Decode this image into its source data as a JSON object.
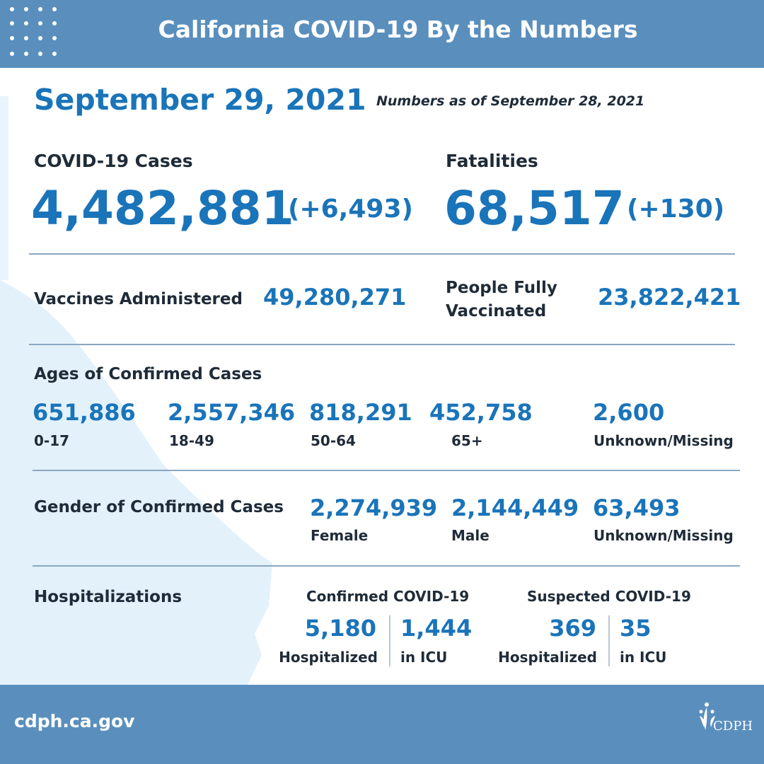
{
  "header": {
    "title": "California COVID-19 By the Numbers"
  },
  "date": "September 29, 2021",
  "as_of": "Numbers as of September 28, 2021",
  "cases": {
    "label": "COVID-19 Cases",
    "total": "4,482,881",
    "change": "(+6,493)"
  },
  "fatalities": {
    "label": "Fatalities",
    "total": "68,517",
    "change": "(+130)"
  },
  "vaccines": {
    "administered_label": "Vaccines Administered",
    "administered_value": "49,280,271",
    "fully_label_line1": "People Fully",
    "fully_label_line2": "Vaccinated",
    "fully_value": "23,822,421"
  },
  "ages": {
    "label": "Ages of Confirmed Cases",
    "groups": [
      {
        "value": "651,886",
        "label": "0-17"
      },
      {
        "value": "2,557,346",
        "label": "18-49"
      },
      {
        "value": "818,291",
        "label": "50-64"
      },
      {
        "value": "452,758",
        "label": "65+"
      },
      {
        "value": "2,600",
        "label": "Unknown/Missing"
      }
    ]
  },
  "gender": {
    "label": "Gender of Confirmed Cases",
    "groups": [
      {
        "value": "2,274,939",
        "label": "Female"
      },
      {
        "value": "2,144,449",
        "label": "Male"
      },
      {
        "value": "63,493",
        "label": "Unknown/Missing"
      }
    ]
  },
  "hospitalizations": {
    "label": "Hospitalizations",
    "confirmed": {
      "label": "Confirmed COVID-19",
      "hospitalized_value": "5,180",
      "hospitalized_label": "Hospitalized",
      "icu_value": "1,444",
      "icu_label": "in ICU"
    },
    "suspected": {
      "label": "Suspected COVID-19",
      "hospitalized_value": "369",
      "hospitalized_label": "Hospitalized",
      "icu_value": "35",
      "icu_label": "in ICU"
    }
  },
  "footer": {
    "url": "cdph.ca.gov",
    "logo_text": "CDPH"
  },
  "colors": {
    "header_bg": "#5a8fbd",
    "accent": "#1a74b9",
    "map": "#e3f1fb",
    "text": "#1f2b38"
  },
  "icons": [
    "dot-grid-icon",
    "california-map-icon",
    "cdph-logo-icon"
  ]
}
